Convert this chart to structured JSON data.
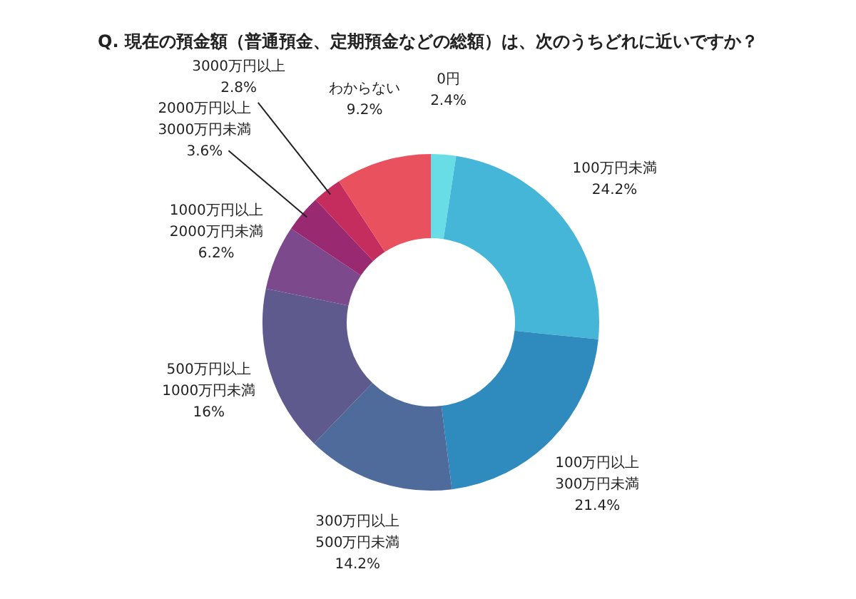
{
  "chart_data": {
    "type": "donut",
    "title": "Q. 現在の預金額（普通預金、定期預金などの総額）は、次のうちどれに近いですか？",
    "categories": [
      "0円",
      "100万円未満",
      "100万円以上\n300万円未満",
      "300万円以上\n500万円未満",
      "500万円以上\n1000万円未満",
      "1000万円以上\n2000万円未満",
      "2000万円以上\n3000万円未満",
      "3000万円以上",
      "わからない"
    ],
    "values": [
      2.4,
      24.2,
      21.4,
      14.2,
      16,
      6.2,
      3.6,
      2.8,
      9.2
    ],
    "value_labels": [
      "2.4%",
      "24.2%",
      "21.4%",
      "14.2%",
      "16%",
      "6.2%",
      "3.6%",
      "2.8%",
      "9.2%"
    ],
    "colors": [
      "#68dde6",
      "#46b6d8",
      "#2f8bbd",
      "#4f6b9c",
      "#5f5a8e",
      "#7c4a8c",
      "#992a72",
      "#c52d5f",
      "#e9515f"
    ]
  }
}
